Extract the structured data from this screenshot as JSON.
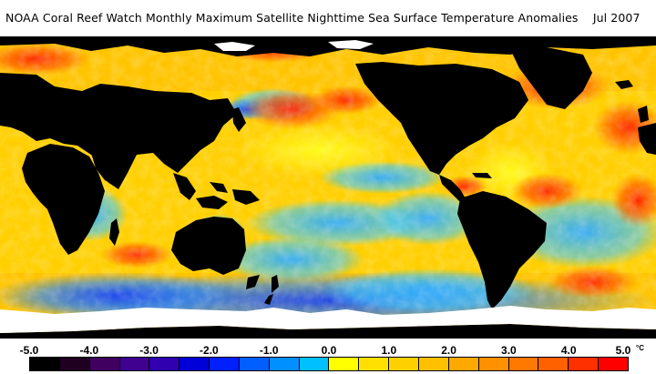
{
  "title": "NOAA Coral Reef Watch Monthly Maximum Satellite Nighttime Sea Surface Temperature Anomalies    Jul 2007",
  "legend": {
    "ticks": [
      "-5.0",
      "-4.0",
      "-3.0",
      "-2.0",
      "-1.0",
      "0.0",
      "1.0",
      "2.0",
      "3.0",
      "4.0",
      "5.0"
    ],
    "unit": "°C",
    "bins": [
      {
        "color": "#000000"
      },
      {
        "color": "#200020"
      },
      {
        "color": "#400060"
      },
      {
        "color": "#400090"
      },
      {
        "color": "#3000b0"
      },
      {
        "color": "#0000d8"
      },
      {
        "color": "#0020ff"
      },
      {
        "color": "#0060ff"
      },
      {
        "color": "#0090ff"
      },
      {
        "color": "#00c0ff"
      },
      {
        "color": "#ffff00"
      },
      {
        "color": "#ffe000"
      },
      {
        "color": "#ffd000"
      },
      {
        "color": "#ffc000"
      },
      {
        "color": "#ffa800"
      },
      {
        "color": "#ff9000"
      },
      {
        "color": "#ff7800"
      },
      {
        "color": "#ff6000"
      },
      {
        "color": "#ff3000"
      },
      {
        "color": "#ff0000"
      }
    ]
  },
  "map_colors": {
    "land": "#000000",
    "ice": "#ffffff",
    "warm_base": "#ffc800",
    "neutral": "#ffee00",
    "cool": "#30b8ff",
    "cold": "#2060ff",
    "hot": "#ff5000"
  }
}
